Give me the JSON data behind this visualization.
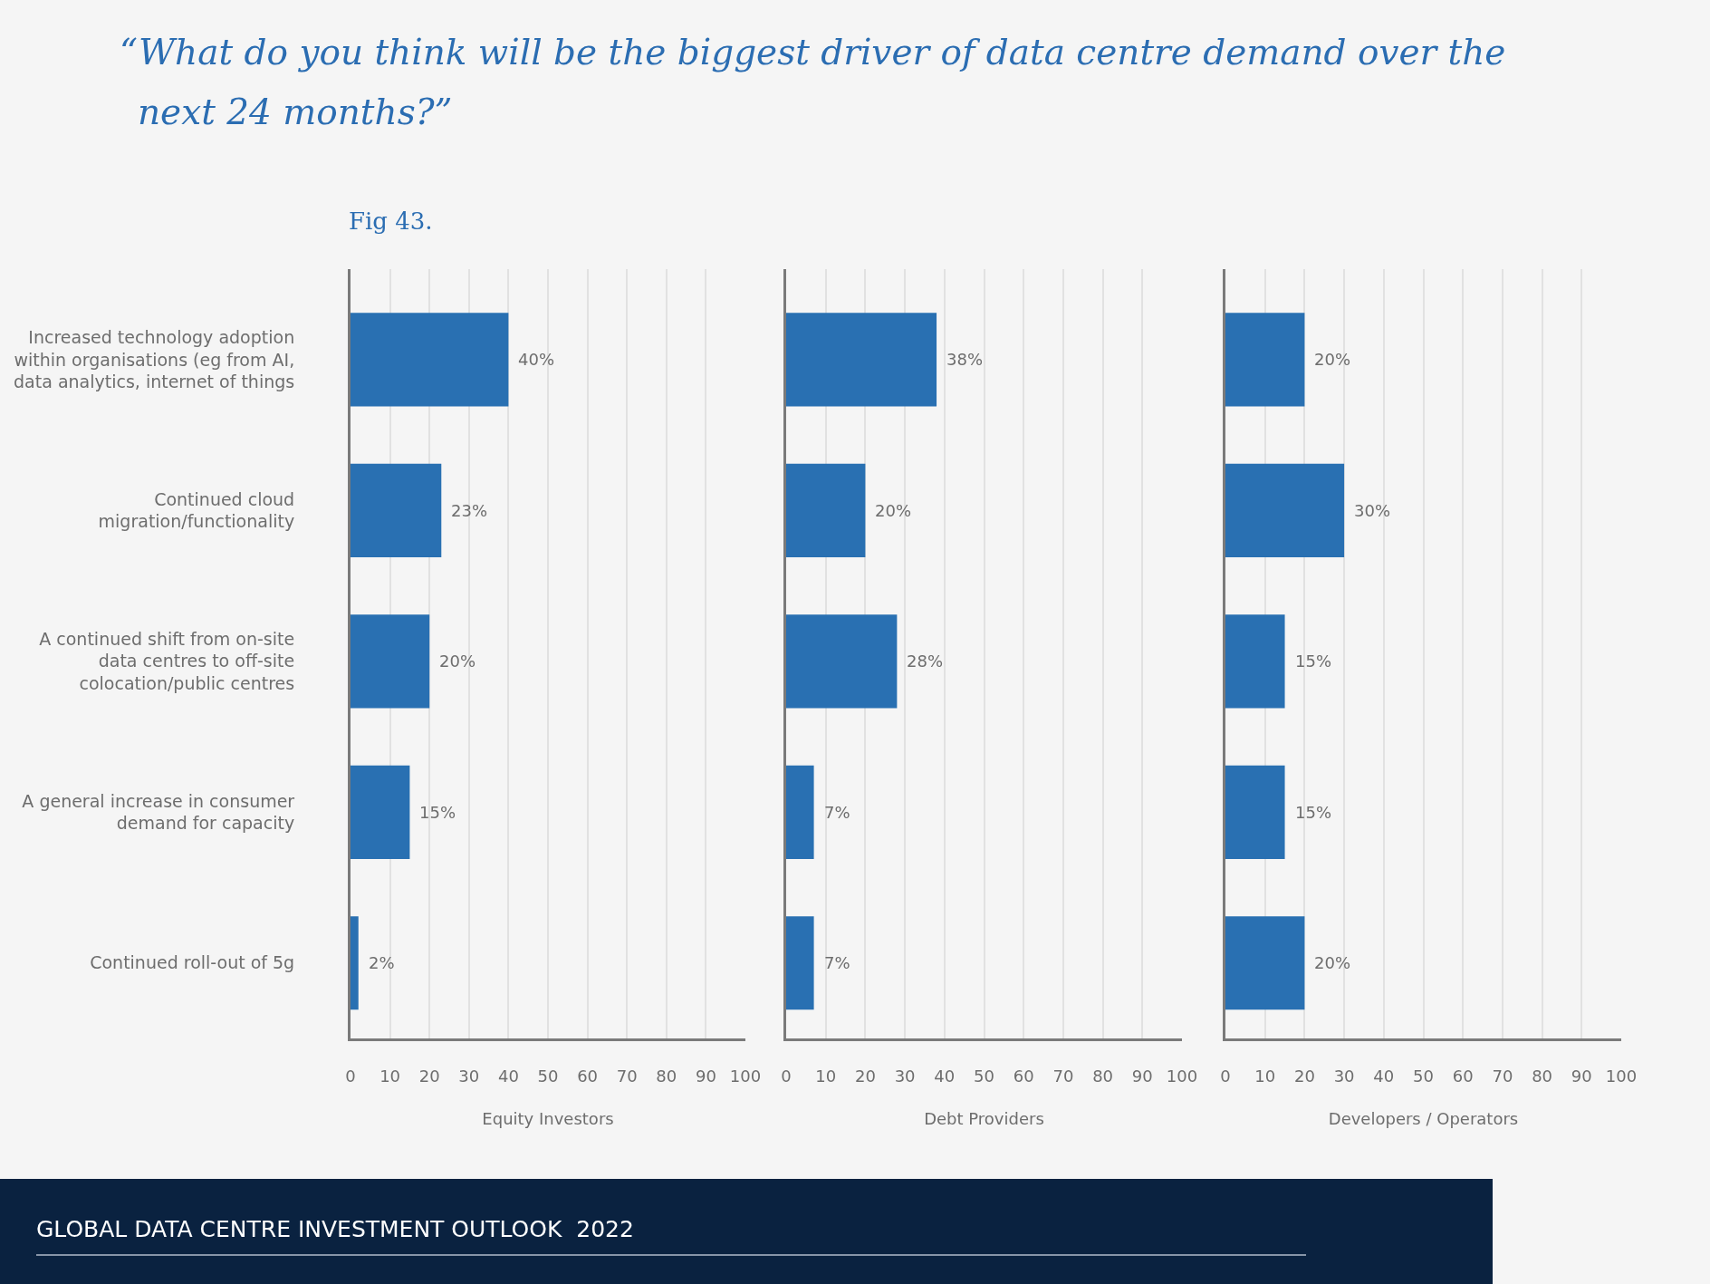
{
  "chart_data": [
    {
      "type": "bar",
      "orientation": "horizontal",
      "title": "“What do you think will be the biggest driver of data centre demand over the next 24 months?”",
      "subtitle": "Fig 43.",
      "annotations": [
        "GLOBAL DATA CENTRE INVESTMENT OUTLOOK  2022"
      ],
      "xlabel": "Equity Investors",
      "categories": [
        "Increased technology adoption within organisations (eg from AI, data analytics, internet of things",
        "Continued cloud migration/functionality",
        "A continued shift from on-site data centres to off-site colocation/public centres",
        "A general increase in consumer demand for capacity",
        "Continued roll-out of 5g"
      ],
      "values": [
        40,
        23,
        20,
        15,
        2
      ],
      "value_labels": [
        "40%",
        "23%",
        "20%",
        "15%",
        "2%"
      ],
      "color": "#2970b2",
      "xlim": [
        0,
        100
      ],
      "xticks": [
        0,
        10,
        20,
        30,
        40,
        50,
        60,
        70,
        80,
        90,
        100
      ],
      "grid": "x"
    },
    {
      "type": "bar",
      "orientation": "horizontal",
      "xlabel": "Debt Providers",
      "categories": [
        "Increased technology adoption within organisations (eg from AI, data analytics, internet of things",
        "Continued cloud migration/functionality",
        "A continued shift from on-site data centres to off-site colocation/public centres",
        "A general increase in consumer demand for capacity",
        "Continued roll-out of 5g"
      ],
      "values": [
        38,
        20,
        28,
        7,
        7
      ],
      "value_labels": [
        "38%",
        "20%",
        "28%",
        "7%",
        "7%"
      ],
      "color": "#2970b2",
      "xlim": [
        0,
        100
      ],
      "xticks": [
        0,
        10,
        20,
        30,
        40,
        50,
        60,
        70,
        80,
        90,
        100
      ],
      "grid": "x",
      "tick_labels": "x"
    },
    {
      "type": "bar",
      "orientation": "horizontal",
      "xlabel": "Developers / Operators",
      "categories": [
        "Increased technology adoption within organisations (eg from AI, data analytics, internet of things",
        "Continued cloud migration/functionality",
        "A continued shift from on-site data centres to off-site colocation/public centres",
        "A general increase in consumer demand for capacity",
        "Continued roll-out of 5g"
      ],
      "values": [
        20,
        30,
        15,
        15,
        20
      ],
      "value_labels": [
        "20%",
        "30%",
        "15%",
        "15%",
        "20%"
      ],
      "color": "#2970b2",
      "xlim": [
        0,
        100
      ],
      "xticks": [
        0,
        10,
        20,
        30,
        40,
        50,
        60,
        70,
        80,
        90,
        100
      ],
      "grid": "x",
      "tick_labels": "x"
    }
  ]
}
